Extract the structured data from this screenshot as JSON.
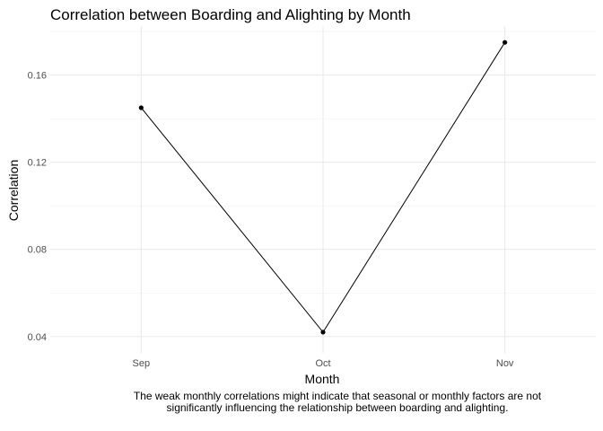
{
  "chart_data": {
    "type": "line",
    "title": "Correlation between Boarding and Alighting by Month",
    "xlabel": "Month",
    "ylabel": "Correlation",
    "categories": [
      "Sep",
      "Oct",
      "Nov"
    ],
    "series": [
      {
        "values": [
          0.145,
          0.042,
          0.175
        ]
      }
    ],
    "ylim": [
      0.0325,
      0.1825
    ],
    "yticks": [
      0.04,
      0.08,
      0.12,
      0.16
    ],
    "ytick_labels": [
      "0.04",
      "0.08",
      "0.12",
      "0.16"
    ],
    "grid": true,
    "line_color": "#000000",
    "caption": "The weak monthly correlations might indicate that seasonal or monthly factors are not significantly influencing the relationship between boarding and alighting."
  }
}
